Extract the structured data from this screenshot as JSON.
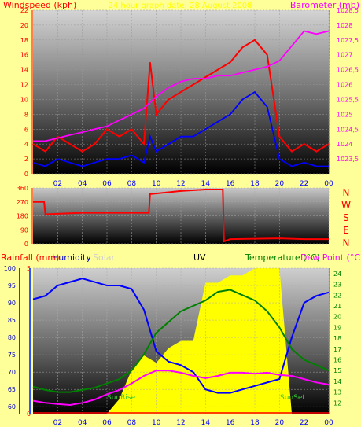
{
  "colors": {
    "background": "#ffff99",
    "windspeed": "#ff0000",
    "gust": "#0000ff",
    "barometer": "#ff00ff",
    "direction": "#ff0000",
    "rainfall": "#ff0000",
    "humidity": "#0000ff",
    "solar": "#ffff00",
    "uv": "#000000",
    "temperature": "#008000",
    "dewpoint": "#ff00ff"
  },
  "chart_data": [
    {
      "type": "line",
      "title": "24 hour graph date: 28 August 2008",
      "xlabel": "",
      "ylabel": "Windspeed (kph)",
      "ylabel_right": "Barometer (mb)",
      "x_ticks": [
        "02",
        "04",
        "06",
        "08",
        "10",
        "12",
        "14",
        "16",
        "18",
        "20",
        "22",
        "00"
      ],
      "ylim": [
        0,
        22
      ],
      "y_ticks": [
        "0",
        "2",
        "4",
        "6",
        "8",
        "10",
        "12",
        "14",
        "16",
        "18",
        "20",
        "22"
      ],
      "y2lim": [
        1023,
        1028.5
      ],
      "y2_ticks": [
        "1023,5",
        "1024",
        "1024,5",
        "1025",
        "1025,5",
        "1026",
        "1026,5",
        "1027",
        "1027,5",
        "1028",
        "1028,5"
      ],
      "x_hours": [
        0,
        1,
        2,
        3,
        4,
        5,
        6,
        7,
        8,
        9,
        9.5,
        10,
        11,
        12,
        13,
        14,
        15,
        16,
        17,
        18,
        19,
        20,
        21,
        22,
        23,
        24
      ],
      "series": [
        {
          "name": "Windspeed",
          "values": [
            4,
            3,
            5,
            4,
            3,
            4,
            6,
            5,
            6,
            4,
            15,
            8,
            10,
            11,
            12,
            13,
            14,
            15,
            17,
            18,
            16,
            5,
            3,
            4,
            3,
            4
          ]
        },
        {
          "name": "Gust",
          "values": [
            1.5,
            1,
            2,
            1.5,
            1,
            1.5,
            2,
            2,
            2.5,
            1.5,
            5,
            3,
            4,
            5,
            5,
            6,
            7,
            8,
            10,
            11,
            9,
            2,
            1,
            1.5,
            1,
            1
          ]
        },
        {
          "name": "Barometer",
          "values": [
            1024.1,
            1024.1,
            1024.2,
            1024.3,
            1024.4,
            1024.5,
            1024.6,
            1024.8,
            1025.0,
            1025.2,
            1025.4,
            1025.6,
            1025.9,
            1026.1,
            1026.2,
            1026.2,
            1026.3,
            1026.3,
            1026.4,
            1026.5,
            1026.6,
            1026.8,
            1027.3,
            1027.8,
            1027.7,
            1027.8
          ]
        }
      ]
    },
    {
      "type": "line",
      "title": "",
      "ylabel": "",
      "ylabel_right_letters": [
        "N",
        "W",
        "S",
        "E",
        "N"
      ],
      "ylim": [
        0,
        360
      ],
      "y_ticks": [
        "0",
        "90",
        "180",
        "270",
        "360"
      ],
      "x_hours": [
        0,
        0.9,
        1,
        4,
        8,
        9.4,
        9.5,
        12,
        14,
        15.4,
        15.5,
        16,
        20,
        22,
        24
      ],
      "series": [
        {
          "name": "Wind direction",
          "values": [
            270,
            270,
            190,
            200,
            200,
            200,
            320,
            340,
            350,
            350,
            15,
            30,
            35,
            30,
            30
          ]
        }
      ]
    },
    {
      "type": "line",
      "title": "",
      "labels": {
        "rainfall": "Rainfall (mm)",
        "humidity": "Humidity",
        "solar": "Solar",
        "uv": "UV",
        "temperature": "Temperature (°C)",
        "dewpoint": "Dew Point (°C"
      },
      "annotations": [
        "SunRise",
        "SunSet"
      ],
      "sunrise_hour": 6,
      "sunset_hour": 21,
      "x_ticks": [
        "02",
        "04",
        "06",
        "08",
        "10",
        "12",
        "14",
        "16",
        "18",
        "20",
        "22",
        "00"
      ],
      "humidity_ylim": [
        58,
        100
      ],
      "humidity_ticks": [
        "60",
        "65",
        "70",
        "75",
        "80",
        "85",
        "90",
        "95",
        "100"
      ],
      "rain_ticks": [
        "0",
        "5"
      ],
      "temp_ylim": [
        11,
        24.5
      ],
      "temp_ticks": [
        "12",
        "13",
        "14",
        "15",
        "16",
        "17",
        "18",
        "19",
        "20",
        "21",
        "22",
        "23",
        "24"
      ],
      "x_hours": [
        0,
        1,
        2,
        3,
        4,
        5,
        6,
        7,
        8,
        9,
        10,
        11,
        12,
        13,
        14,
        15,
        16,
        17,
        18,
        19,
        20,
        21,
        22,
        23,
        24
      ],
      "series": [
        {
          "name": "Humidity",
          "values": [
            91,
            92,
            95,
            96,
            97,
            96,
            95,
            95,
            94,
            88,
            76,
            73,
            72,
            70,
            65,
            64,
            64,
            65,
            66,
            67,
            68,
            80,
            90,
            92,
            93
          ]
        },
        {
          "name": "Temperature",
          "values": [
            13.5,
            13.2,
            13.0,
            13.0,
            13.2,
            13.4,
            13.8,
            14.2,
            15.0,
            16.5,
            18.5,
            19.5,
            20.5,
            21.0,
            21.5,
            22.3,
            22.5,
            22.0,
            21.5,
            20.5,
            19.0,
            17.0,
            16.0,
            15.5,
            15.0
          ]
        },
        {
          "name": "Dew Point",
          "values": [
            12.2,
            12.0,
            11.9,
            11.8,
            12.0,
            12.3,
            12.8,
            13.2,
            13.8,
            14.5,
            15.0,
            15.0,
            14.8,
            14.5,
            14.3,
            14.5,
            14.8,
            14.8,
            14.7,
            14.8,
            14.6,
            14.5,
            14.2,
            13.9,
            13.7
          ]
        },
        {
          "name": "Solar",
          "values": [
            0,
            0,
            0,
            0,
            0,
            0,
            0,
            10,
            30,
            40,
            35,
            45,
            50,
            50,
            90,
            90,
            95,
            95,
            100,
            100,
            100,
            0,
            0,
            0,
            0
          ]
        },
        {
          "name": "Rainfall",
          "values": [
            0,
            0,
            0,
            0,
            0,
            0,
            0,
            0,
            0,
            0,
            0,
            0,
            0,
            0,
            0,
            0,
            0,
            0,
            0,
            0,
            0,
            0,
            0,
            0,
            0
          ]
        }
      ]
    }
  ]
}
